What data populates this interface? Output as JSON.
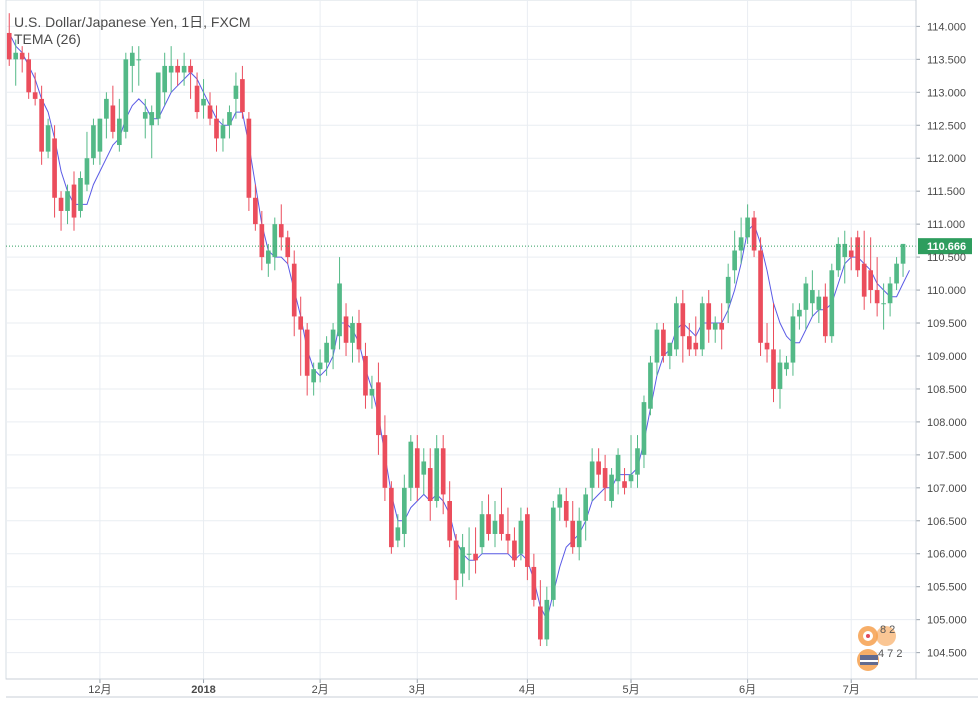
{
  "header": {
    "title": "U.S. Dollar/Japanese Yen, 1日, FXCM",
    "indicator": "TEMA (26)"
  },
  "colors": {
    "up": "#53b987",
    "down": "#eb4d5c",
    "tema": "#5b5be6",
    "last_price_line": "#2e9d5e",
    "grid": "#e9edf2",
    "axis_text": "#4a4a4a"
  },
  "watermark": {
    "top_text": "8  2",
    "bottom_text": "4  7 2"
  },
  "chart_data": {
    "type": "candlestick",
    "symbol": "USD/JPY",
    "timeframe": "1日",
    "source": "FXCM",
    "last_price": "110.666",
    "ylim": [
      104.1,
      114.4
    ],
    "y_ticks": [
      "104.500",
      "105.000",
      "105.500",
      "106.000",
      "106.500",
      "107.000",
      "107.500",
      "108.000",
      "108.500",
      "109.000",
      "109.500",
      "110.000",
      "110.500",
      "111.000",
      "111.500",
      "112.000",
      "112.500",
      "113.000",
      "113.500",
      "114.000"
    ],
    "x_ticks": [
      "12月",
      "2018",
      "2月",
      "3月",
      "4月",
      "5月",
      "6月",
      "7月"
    ],
    "x_tick_bar_index": [
      14,
      30,
      48,
      63,
      80,
      96,
      114,
      130
    ],
    "candles": [
      [
        113.9,
        114.2,
        113.4,
        113.5
      ],
      [
        113.5,
        113.8,
        113.1,
        113.6
      ],
      [
        113.6,
        113.7,
        113.3,
        113.5
      ],
      [
        113.5,
        113.6,
        112.9,
        113.0
      ],
      [
        113.0,
        113.3,
        112.8,
        112.9
      ],
      [
        112.9,
        113.1,
        111.9,
        112.1
      ],
      [
        112.1,
        112.6,
        112.0,
        112.5
      ],
      [
        112.3,
        112.5,
        111.1,
        111.4
      ],
      [
        111.4,
        111.5,
        110.9,
        111.2
      ],
      [
        111.2,
        111.6,
        111.0,
        111.5
      ],
      [
        111.6,
        111.8,
        110.9,
        111.1
      ],
      [
        111.2,
        111.8,
        111.1,
        111.7
      ],
      [
        111.6,
        112.4,
        111.5,
        112.0
      ],
      [
        112.0,
        112.6,
        111.9,
        112.5
      ],
      [
        112.1,
        112.6,
        111.9,
        112.6
      ],
      [
        112.6,
        113.0,
        112.3,
        112.9
      ],
      [
        112.8,
        113.1,
        112.3,
        112.4
      ],
      [
        112.2,
        112.9,
        112.1,
        112.6
      ],
      [
        112.4,
        113.6,
        112.3,
        113.5
      ],
      [
        113.4,
        113.7,
        113.0,
        113.6
      ],
      [
        113.5,
        113.7,
        113.1,
        113.5
      ],
      [
        112.6,
        112.9,
        112.3,
        112.7
      ],
      [
        112.5,
        112.8,
        112.0,
        112.7
      ],
      [
        112.6,
        113.3,
        112.5,
        113.3
      ],
      [
        113.0,
        113.6,
        112.8,
        113.4
      ],
      [
        113.3,
        113.7,
        113.0,
        113.4
      ],
      [
        113.4,
        113.5,
        113.1,
        113.3
      ],
      [
        113.3,
        113.6,
        113.1,
        113.4
      ],
      [
        113.4,
        113.5,
        112.9,
        113.3
      ],
      [
        113.1,
        113.3,
        112.6,
        112.7
      ],
      [
        112.8,
        113.2,
        112.6,
        112.9
      ],
      [
        112.8,
        113.0,
        112.5,
        112.6
      ],
      [
        112.6,
        112.8,
        112.1,
        112.3
      ],
      [
        112.3,
        112.6,
        112.1,
        112.5
      ],
      [
        112.5,
        112.8,
        112.3,
        112.7
      ],
      [
        112.9,
        113.3,
        112.6,
        113.1
      ],
      [
        113.2,
        113.4,
        112.6,
        112.7
      ],
      [
        112.6,
        112.7,
        111.2,
        111.4
      ],
      [
        111.4,
        111.6,
        110.9,
        111.0
      ],
      [
        111.0,
        111.2,
        110.3,
        110.5
      ],
      [
        110.4,
        110.7,
        110.2,
        110.6
      ],
      [
        110.5,
        111.1,
        110.3,
        111.0
      ],
      [
        111.0,
        111.3,
        110.6,
        110.8
      ],
      [
        110.8,
        110.9,
        110.4,
        110.5
      ],
      [
        110.4,
        110.6,
        109.3,
        109.6
      ],
      [
        109.6,
        109.9,
        108.7,
        109.4
      ],
      [
        109.4,
        109.5,
        108.4,
        108.7
      ],
      [
        108.6,
        108.9,
        108.4,
        108.8
      ],
      [
        108.8,
        109.1,
        108.6,
        108.9
      ],
      [
        108.9,
        109.3,
        108.7,
        109.2
      ],
      [
        109.1,
        109.5,
        108.8,
        109.4
      ],
      [
        109.3,
        110.5,
        109.1,
        110.1
      ],
      [
        109.6,
        109.8,
        109.0,
        109.2
      ],
      [
        109.2,
        109.6,
        108.9,
        109.5
      ],
      [
        109.5,
        109.7,
        108.9,
        109.1
      ],
      [
        109.0,
        109.2,
        108.2,
        108.4
      ],
      [
        108.4,
        108.7,
        108.2,
        108.5
      ],
      [
        108.6,
        108.9,
        107.5,
        107.8
      ],
      [
        107.8,
        108.1,
        106.8,
        107.0
      ],
      [
        107.0,
        107.1,
        106.0,
        106.1
      ],
      [
        106.2,
        106.6,
        106.1,
        106.4
      ],
      [
        106.3,
        107.2,
        106.1,
        107.0
      ],
      [
        107.0,
        107.8,
        106.8,
        107.7
      ],
      [
        107.6,
        107.8,
        106.8,
        107.0
      ],
      [
        107.2,
        107.6,
        106.9,
        107.4
      ],
      [
        107.3,
        107.6,
        106.5,
        106.8
      ],
      [
        106.8,
        107.8,
        106.7,
        107.6
      ],
      [
        107.6,
        107.8,
        106.6,
        106.9
      ],
      [
        106.8,
        107.1,
        106.1,
        106.2
      ],
      [
        106.2,
        106.3,
        105.3,
        105.6
      ],
      [
        105.7,
        106.3,
        105.5,
        106.1
      ],
      [
        106.0,
        106.4,
        105.6,
        106.0
      ],
      [
        106.0,
        106.4,
        105.7,
        105.9
      ],
      [
        106.1,
        106.8,
        106.0,
        106.6
      ],
      [
        106.6,
        106.9,
        106.2,
        106.3
      ],
      [
        106.3,
        106.8,
        106.1,
        106.5
      ],
      [
        106.6,
        107.0,
        106.2,
        106.3
      ],
      [
        106.3,
        106.7,
        106.0,
        106.2
      ],
      [
        106.2,
        106.4,
        105.8,
        105.9
      ],
      [
        106.0,
        106.7,
        105.9,
        106.5
      ],
      [
        106.6,
        106.7,
        105.6,
        105.8
      ],
      [
        105.8,
        106.0,
        105.2,
        105.3
      ],
      [
        105.2,
        105.6,
        104.6,
        104.7
      ],
      [
        104.7,
        105.5,
        104.6,
        105.3
      ],
      [
        105.3,
        106.8,
        105.2,
        106.7
      ],
      [
        106.7,
        107.0,
        106.5,
        106.9
      ],
      [
        106.8,
        107.0,
        106.4,
        106.5
      ],
      [
        106.5,
        106.8,
        106.0,
        106.1
      ],
      [
        106.1,
        106.7,
        105.9,
        106.5
      ],
      [
        106.5,
        107.0,
        106.2,
        106.9
      ],
      [
        107.0,
        107.6,
        106.8,
        107.4
      ],
      [
        107.4,
        107.6,
        107.0,
        107.2
      ],
      [
        107.3,
        107.5,
        106.8,
        107.0
      ],
      [
        106.8,
        107.3,
        106.7,
        107.2
      ],
      [
        107.1,
        107.6,
        106.9,
        107.5
      ],
      [
        107.1,
        107.3,
        106.9,
        107.0
      ],
      [
        107.1,
        107.8,
        107.0,
        107.2
      ],
      [
        107.2,
        107.8,
        107.0,
        107.6
      ],
      [
        107.5,
        108.4,
        107.3,
        108.3
      ],
      [
        108.2,
        109.0,
        108.1,
        108.9
      ],
      [
        108.9,
        109.5,
        108.7,
        109.4
      ],
      [
        109.4,
        109.5,
        108.9,
        109.0
      ],
      [
        109.0,
        109.2,
        108.8,
        109.2
      ],
      [
        109.1,
        109.9,
        109.0,
        109.8
      ],
      [
        109.8,
        110.0,
        108.9,
        109.3
      ],
      [
        109.3,
        109.5,
        109.0,
        109.1
      ],
      [
        109.2,
        109.6,
        109.0,
        109.1
      ],
      [
        109.1,
        109.9,
        109.0,
        109.8
      ],
      [
        109.8,
        110.0,
        109.2,
        109.4
      ],
      [
        109.4,
        109.6,
        109.2,
        109.5
      ],
      [
        109.5,
        109.8,
        109.1,
        109.4
      ],
      [
        109.8,
        110.4,
        109.5,
        110.2
      ],
      [
        110.3,
        110.9,
        110.1,
        110.6
      ],
      [
        110.6,
        111.1,
        110.4,
        110.8
      ],
      [
        110.8,
        111.3,
        110.7,
        111.1
      ],
      [
        111.1,
        111.2,
        110.5,
        110.6
      ],
      [
        110.6,
        110.8,
        109.0,
        109.2
      ],
      [
        109.2,
        109.5,
        108.9,
        109.1
      ],
      [
        109.1,
        109.8,
        108.3,
        108.5
      ],
      [
        108.5,
        109.1,
        108.2,
        108.9
      ],
      [
        108.8,
        109.0,
        108.7,
        108.9
      ],
      [
        108.9,
        109.8,
        108.7,
        109.6
      ],
      [
        109.6,
        109.8,
        109.4,
        109.7
      ],
      [
        109.7,
        110.2,
        109.4,
        110.1
      ],
      [
        109.8,
        110.3,
        109.6,
        110.0
      ],
      [
        109.7,
        110.0,
        109.5,
        109.9
      ],
      [
        109.9,
        110.1,
        109.2,
        109.3
      ],
      [
        109.3,
        110.4,
        109.2,
        110.3
      ],
      [
        110.3,
        110.8,
        110.2,
        110.7
      ],
      [
        110.5,
        110.9,
        110.1,
        110.7
      ],
      [
        110.6,
        110.8,
        110.3,
        110.5
      ],
      [
        110.8,
        110.9,
        110.2,
        110.3
      ],
      [
        110.4,
        110.9,
        109.7,
        109.9
      ],
      [
        110.3,
        110.8,
        109.8,
        110.0
      ],
      [
        110.0,
        110.5,
        109.6,
        109.8
      ],
      [
        109.8,
        110.1,
        109.4,
        109.8
      ],
      [
        109.8,
        110.2,
        109.6,
        110.1
      ],
      [
        110.1,
        110.5,
        110.0,
        110.4
      ],
      [
        110.4,
        110.7,
        110.2,
        110.7
      ]
    ],
    "tema": [
      113.9,
      113.7,
      113.6,
      113.4,
      113.2,
      112.9,
      112.7,
      112.3,
      111.8,
      111.5,
      111.3,
      111.3,
      111.3,
      111.6,
      111.8,
      112.0,
      112.2,
      112.3,
      112.6,
      112.8,
      112.9,
      112.8,
      112.6,
      112.6,
      112.8,
      113.0,
      113.1,
      113.2,
      113.3,
      113.2,
      113.0,
      112.8,
      112.6,
      112.5,
      112.5,
      112.7,
      112.7,
      112.2,
      111.6,
      111.0,
      110.6,
      110.5,
      110.5,
      110.4,
      110.0,
      109.6,
      109.1,
      108.8,
      108.7,
      108.8,
      109.0,
      109.5,
      109.5,
      109.4,
      109.2,
      108.8,
      108.5,
      108.1,
      107.5,
      106.9,
      106.5,
      106.5,
      106.7,
      106.8,
      106.9,
      106.8,
      106.9,
      106.8,
      106.6,
      106.2,
      106.0,
      105.9,
      105.9,
      106.0,
      106.0,
      106.0,
      106.0,
      106.0,
      105.9,
      106.0,
      105.9,
      105.6,
      105.2,
      105.0,
      105.4,
      105.8,
      106.1,
      106.2,
      106.3,
      106.5,
      106.8,
      106.9,
      107.0,
      107.0,
      107.2,
      107.2,
      107.2,
      107.3,
      107.7,
      108.2,
      108.7,
      109.0,
      109.1,
      109.4,
      109.5,
      109.4,
      109.3,
      109.5,
      109.5,
      109.5,
      109.5,
      109.7,
      110.0,
      110.4,
      110.9,
      111.0,
      110.7,
      110.3,
      109.8,
      109.5,
      109.3,
      109.2,
      109.2,
      109.4,
      109.6,
      109.7,
      109.7,
      109.8,
      110.1,
      110.4,
      110.5,
      110.5,
      110.4,
      110.3,
      110.1,
      110.0,
      109.9,
      109.9,
      110.1,
      110.3
    ]
  }
}
